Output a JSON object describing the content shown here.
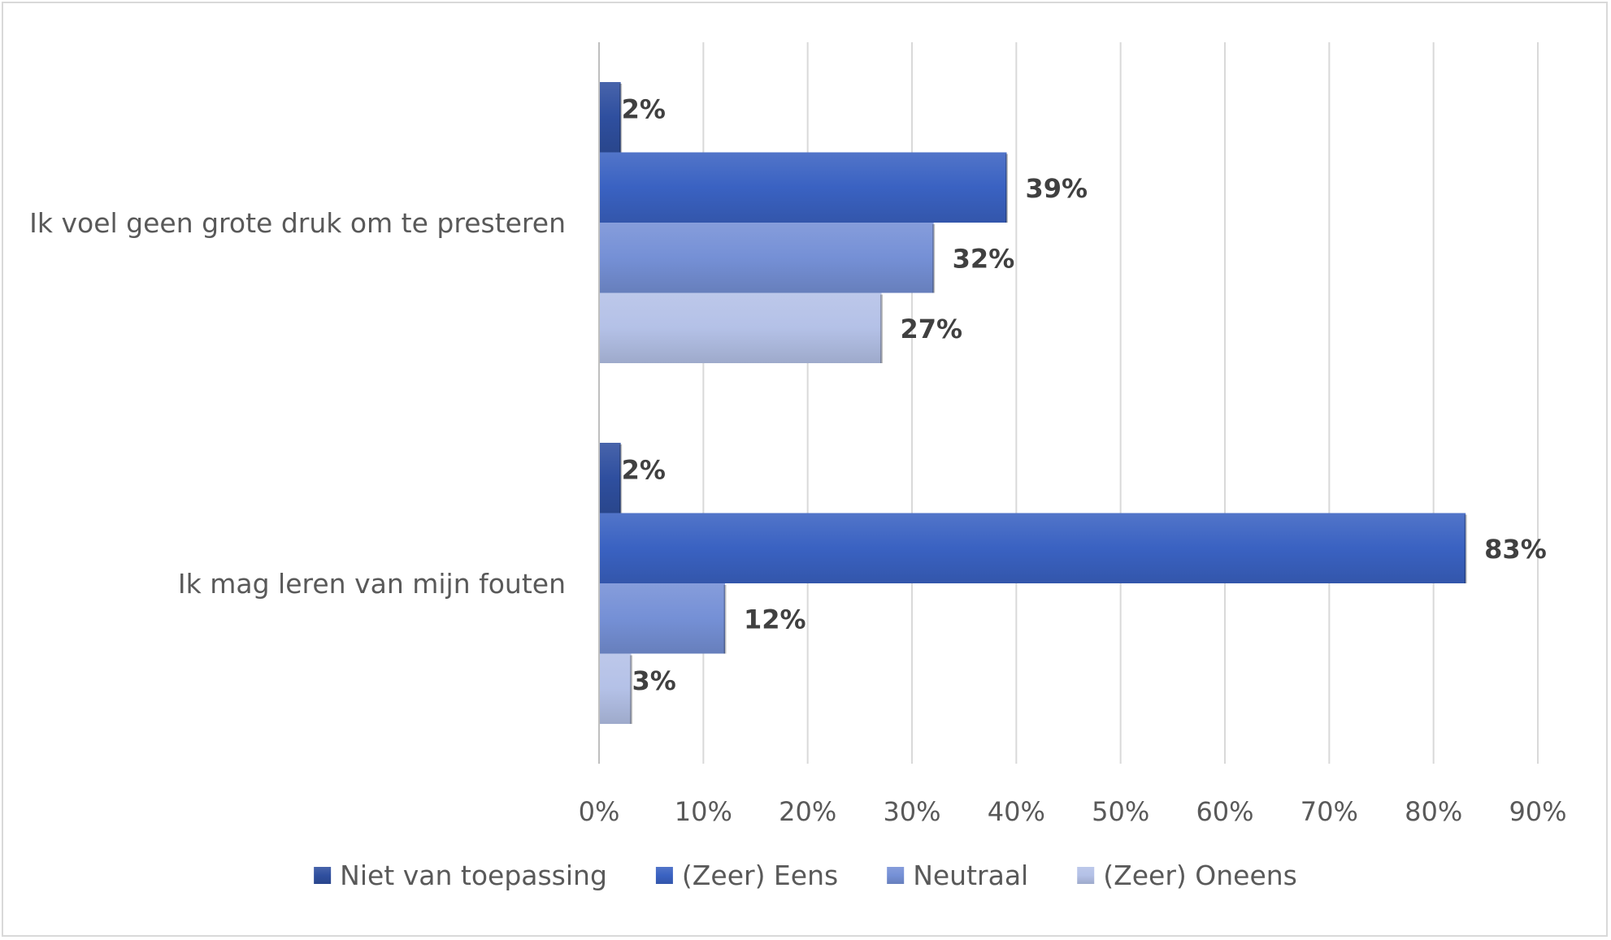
{
  "chart_data": {
    "type": "bar",
    "orientation": "horizontal",
    "categories": [
      "Ik voel geen grote druk om te presteren",
      "Ik mag leren van mijn fouten"
    ],
    "series": [
      {
        "name": "Niet van toepassing",
        "values": [
          2,
          2
        ],
        "labels": [
          "2%",
          "2%"
        ],
        "color": "#2f4f9f"
      },
      {
        "name": "(Zeer) Eens",
        "values": [
          39,
          83
        ],
        "labels": [
          "39%",
          "83%"
        ],
        "color": "#3a62c2"
      },
      {
        "name": "Neutraal",
        "values": [
          32,
          12
        ],
        "labels": [
          "32%",
          "12%"
        ],
        "color": "#7590d6"
      },
      {
        "name": "(Zeer) Oneens",
        "values": [
          27,
          3
        ],
        "labels": [
          "27%",
          "3%"
        ],
        "color": "#b4c1e7"
      }
    ],
    "xlim": [
      0,
      90
    ],
    "x_ticks": [
      0,
      10,
      20,
      30,
      40,
      50,
      60,
      70,
      80,
      90
    ],
    "x_tick_labels": [
      "0%",
      "10%",
      "20%",
      "30%",
      "40%",
      "50%",
      "60%",
      "70%",
      "80%",
      "90%"
    ],
    "grid": true,
    "legend_position": "bottom"
  }
}
